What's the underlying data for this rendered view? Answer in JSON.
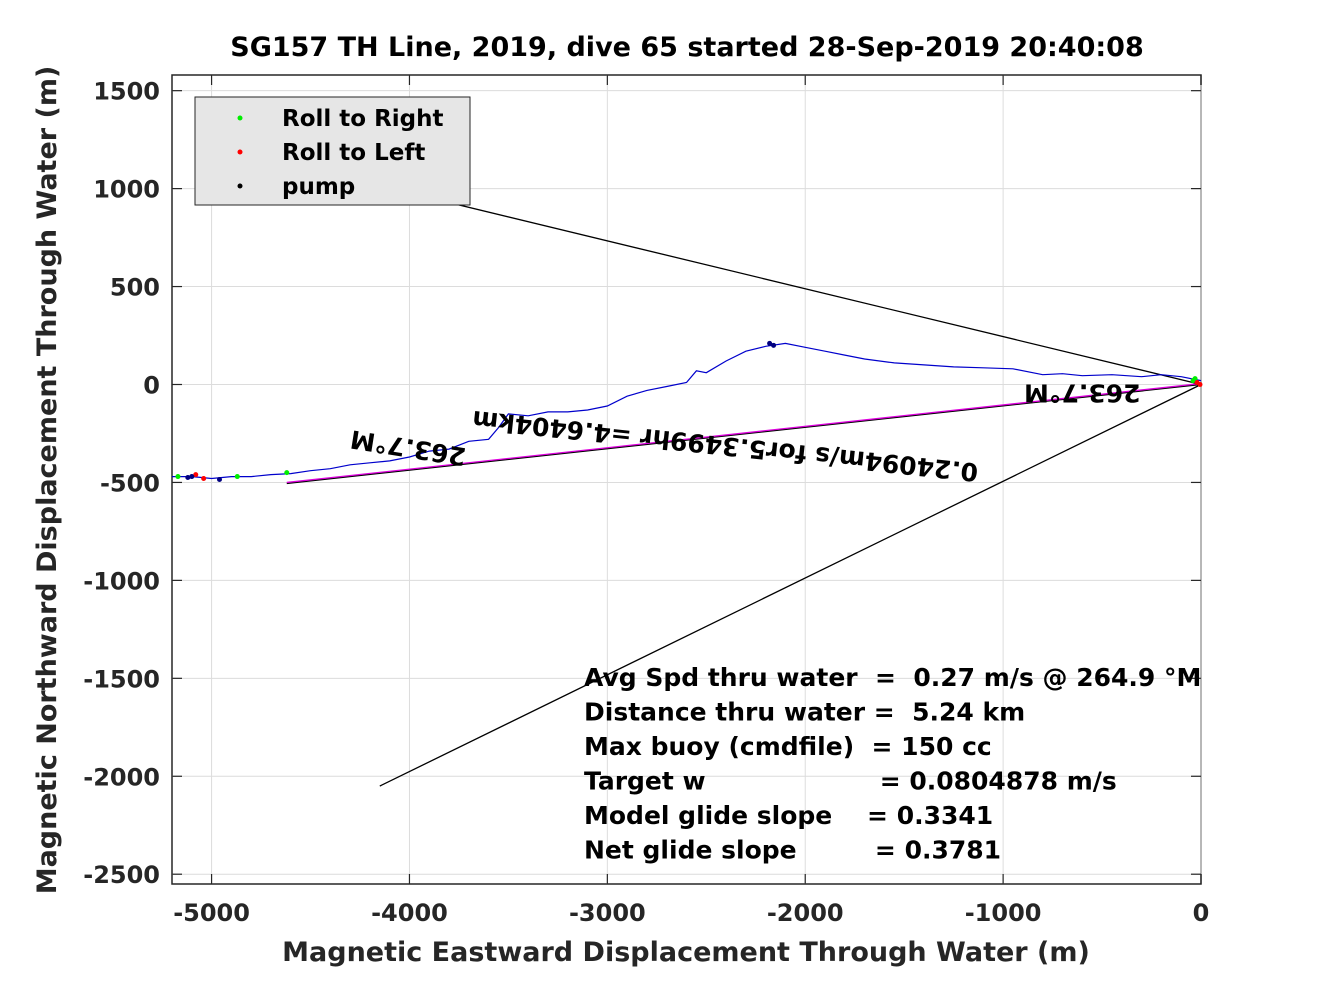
{
  "chart_data": {
    "type": "line",
    "title": "SG157 TH Line, 2019, dive 65 started 28-Sep-2019 20:40:08",
    "xlabel": "Magnetic Eastward Displacement Through Water (m)",
    "ylabel": "Magnetic Northward Displacement Through Water (m)",
    "xlim": [
      -5200,
      0
    ],
    "ylim": [
      -2550,
      1580
    ],
    "x_ticks": [
      -5000,
      -4000,
      -3000,
      -2000,
      -1000,
      0
    ],
    "y_ticks": [
      1500,
      1000,
      500,
      0,
      -500,
      -1000,
      -1500,
      -2000,
      -2500
    ],
    "grid": true,
    "legend_position": "top-left",
    "legend": [
      {
        "label": "Roll to Right",
        "color": "#00ee00"
      },
      {
        "label": "Roll to Left",
        "color": "#ff0000"
      },
      {
        "label": "pump",
        "color": "#000000"
      }
    ],
    "series": [
      {
        "color": "#0000cc",
        "x": [
          0,
          -100,
          -200,
          -300,
          -450,
          -600,
          -700,
          -800,
          -950,
          -1100,
          -1250,
          -1400,
          -1550,
          -1700,
          -1800,
          -1900,
          -2000,
          -2100,
          -2200,
          -2300,
          -2400,
          -2500,
          -2550,
          -2600,
          -2700,
          -2800,
          -2900,
          -3000,
          -3100,
          -3200,
          -3300,
          -3400,
          -3500,
          -3550,
          -3600,
          -3700,
          -3800,
          -3900,
          -4000,
          -4100,
          -4200,
          -4300,
          -4400,
          -4500,
          -4600,
          -4700,
          -4800,
          -4900,
          -5000,
          -5050,
          -5100,
          -5150,
          -5200
        ],
        "y": [
          20,
          40,
          50,
          40,
          50,
          45,
          55,
          50,
          80,
          85,
          90,
          100,
          110,
          130,
          150,
          170,
          190,
          210,
          195,
          170,
          120,
          60,
          70,
          10,
          -10,
          -30,
          -60,
          -110,
          -130,
          -140,
          -140,
          -160,
          -150,
          -220,
          -280,
          -290,
          -330,
          -340,
          -370,
          -390,
          -400,
          -410,
          -430,
          -440,
          -455,
          -460,
          -470,
          -470,
          -480,
          -475,
          -470,
          -470,
          -470
        ]
      }
    ],
    "markers": {
      "roll_right": {
        "x": [
          -5170,
          -4870,
          -4620,
          -40,
          -30
        ],
        "y": [
          -470,
          -470,
          -450,
          20,
          30
        ]
      },
      "roll_left": {
        "x": [
          -5080,
          -5040,
          -20,
          -5
        ],
        "y": [
          -460,
          -480,
          10,
          0
        ]
      },
      "pump": {
        "x": [
          -5100,
          -5120,
          -4960,
          -2180,
          -2160
        ],
        "y": [
          -470,
          -475,
          -485,
          210,
          200
        ]
      }
    },
    "reference_lines": [
      {
        "color": "#000000",
        "x": [
          -4500,
          0
        ],
        "y": [
          1100,
          0
        ]
      },
      {
        "color": "#000000",
        "x": [
          -4150,
          0
        ],
        "y": [
          -2050,
          0
        ]
      },
      {
        "color": "#000000",
        "x": [
          -4620,
          0
        ],
        "y": [
          -505,
          0
        ]
      },
      {
        "color": "#dd00dd",
        "x": [
          -4620,
          0
        ],
        "y": [
          -500,
          5
        ]
      }
    ],
    "annotations": [
      {
        "text": "263.7°M",
        "x": -4000,
        "y": -280
      },
      {
        "text": "263.7°M",
        "x": -600,
        "y": 0
      },
      {
        "text": "0.24094m/s for5.3499hr =4.6404km",
        "x": -2400,
        "y": -270
      }
    ],
    "stats": [
      "Avg Spd thru water  =  0.27 m/s @ 264.9 °M",
      "Distance thru water =  5.24 km",
      "Max buoy (cmdfile)  = 150 cc",
      "Target w                    = 0.0804878 m/s",
      "Model glide slope    = 0.3341",
      "Net glide slope         = 0.3781"
    ]
  }
}
